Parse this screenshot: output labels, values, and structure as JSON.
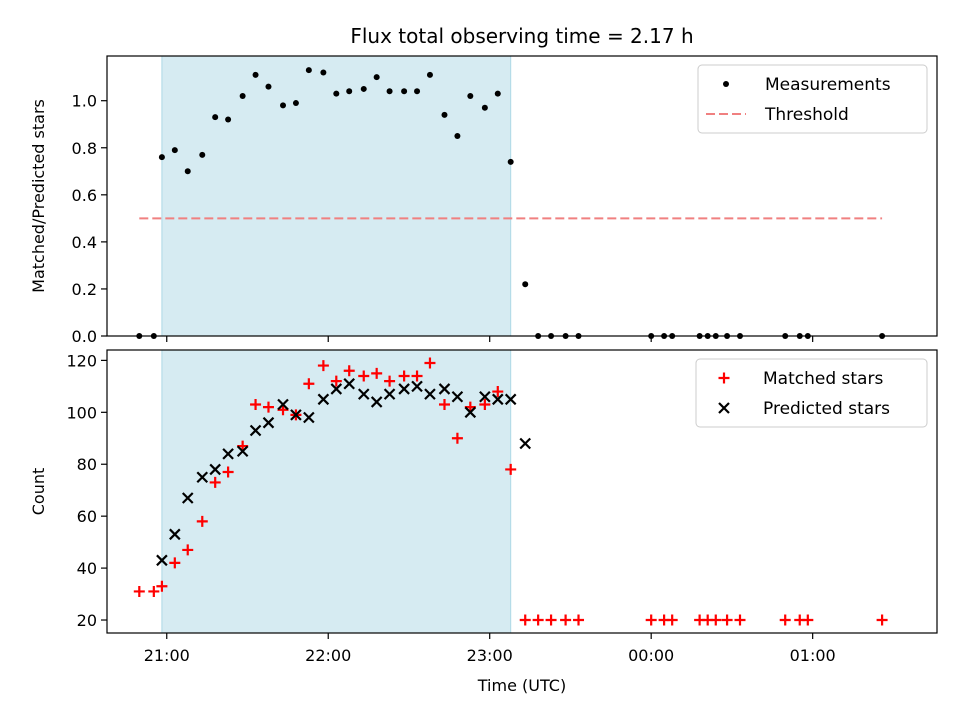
{
  "chart_data": {
    "type": "scatter",
    "title": "Flux total observing time = 2.17 h",
    "xlabel": "Time (UTC)",
    "xlim_hours": [
      20.63,
      25.77
    ],
    "xticks": [
      {
        "value": 21,
        "label": "21:00"
      },
      {
        "value": 22,
        "label": "22:00"
      },
      {
        "value": 23,
        "label": "23:00"
      },
      {
        "value": 24,
        "label": "00:00"
      },
      {
        "value": 25,
        "label": "01:00"
      }
    ],
    "shaded_span_hours": [
      20.97,
      23.13
    ],
    "panels": [
      {
        "ylabel": "Matched/Predicted stars",
        "ylim": [
          0,
          1.19
        ],
        "yticks": [
          {
            "value": 0.0,
            "label": "0.0"
          },
          {
            "value": 0.2,
            "label": "0.2"
          },
          {
            "value": 0.4,
            "label": "0.4"
          },
          {
            "value": 0.6,
            "label": "0.6"
          },
          {
            "value": 0.8,
            "label": "0.8"
          },
          {
            "value": 1.0,
            "label": "1.0"
          }
        ],
        "legend_position": "top-right",
        "series": [
          {
            "name": "Measurements",
            "kind": "dot",
            "color": "#000000",
            "points": [
              [
                20.83,
                0
              ],
              [
                20.92,
                0
              ],
              [
                20.97,
                0.76
              ],
              [
                21.05,
                0.79
              ],
              [
                21.13,
                0.7
              ],
              [
                21.22,
                0.77
              ],
              [
                21.3,
                0.93
              ],
              [
                21.38,
                0.92
              ],
              [
                21.47,
                1.02
              ],
              [
                21.55,
                1.11
              ],
              [
                21.63,
                1.06
              ],
              [
                21.72,
                0.98
              ],
              [
                21.8,
                0.99
              ],
              [
                21.88,
                1.13
              ],
              [
                21.97,
                1.12
              ],
              [
                22.05,
                1.03
              ],
              [
                22.13,
                1.04
              ],
              [
                22.22,
                1.05
              ],
              [
                22.3,
                1.1
              ],
              [
                22.38,
                1.04
              ],
              [
                22.47,
                1.04
              ],
              [
                22.55,
                1.04
              ],
              [
                22.63,
                1.11
              ],
              [
                22.72,
                0.94
              ],
              [
                22.8,
                0.85
              ],
              [
                22.88,
                1.02
              ],
              [
                22.97,
                0.97
              ],
              [
                23.05,
                1.03
              ],
              [
                23.13,
                0.74
              ],
              [
                23.22,
                0.22
              ],
              [
                23.3,
                0
              ],
              [
                23.38,
                0
              ],
              [
                23.47,
                0
              ],
              [
                23.55,
                0
              ],
              [
                24.0,
                0
              ],
              [
                24.08,
                0
              ],
              [
                24.13,
                0
              ],
              [
                24.3,
                0
              ],
              [
                24.35,
                0
              ],
              [
                24.4,
                0
              ],
              [
                24.47,
                0
              ],
              [
                24.55,
                0
              ],
              [
                24.83,
                0
              ],
              [
                24.92,
                0
              ],
              [
                24.97,
                0
              ],
              [
                25.43,
                0
              ]
            ]
          },
          {
            "name": "Threshold",
            "kind": "dashed",
            "color": "#f08080",
            "from_hour": 20.83,
            "to_hour": 25.43,
            "value": 0.5
          }
        ]
      },
      {
        "ylabel": "Count",
        "ylim": [
          15,
          124
        ],
        "yticks": [
          {
            "value": 20,
            "label": "20"
          },
          {
            "value": 40,
            "label": "40"
          },
          {
            "value": 60,
            "label": "60"
          },
          {
            "value": 80,
            "label": "80"
          },
          {
            "value": 100,
            "label": "100"
          },
          {
            "value": 120,
            "label": "120"
          }
        ],
        "legend_position": "top-right",
        "series": [
          {
            "name": "Matched stars",
            "kind": "plus",
            "color": "#ff0000",
            "points": [
              [
                20.83,
                31
              ],
              [
                20.92,
                31
              ],
              [
                20.97,
                33
              ],
              [
                21.05,
                42
              ],
              [
                21.13,
                47
              ],
              [
                21.22,
                58
              ],
              [
                21.3,
                73
              ],
              [
                21.38,
                77
              ],
              [
                21.47,
                87
              ],
              [
                21.55,
                103
              ],
              [
                21.63,
                102
              ],
              [
                21.72,
                101
              ],
              [
                21.8,
                99
              ],
              [
                21.88,
                111
              ],
              [
                21.97,
                118
              ],
              [
                22.05,
                112
              ],
              [
                22.13,
                116
              ],
              [
                22.22,
                114
              ],
              [
                22.3,
                115
              ],
              [
                22.38,
                112
              ],
              [
                22.47,
                114
              ],
              [
                22.55,
                114
              ],
              [
                22.63,
                119
              ],
              [
                22.72,
                103
              ],
              [
                22.8,
                90
              ],
              [
                22.88,
                102
              ],
              [
                22.97,
                103
              ],
              [
                23.05,
                108
              ],
              [
                23.13,
                78
              ],
              [
                23.22,
                20
              ],
              [
                23.3,
                20
              ],
              [
                23.38,
                20
              ],
              [
                23.47,
                20
              ],
              [
                23.55,
                20
              ],
              [
                24.0,
                20
              ],
              [
                24.08,
                20
              ],
              [
                24.13,
                20
              ],
              [
                24.3,
                20
              ],
              [
                24.35,
                20
              ],
              [
                24.4,
                20
              ],
              [
                24.47,
                20
              ],
              [
                24.55,
                20
              ],
              [
                24.83,
                20
              ],
              [
                24.92,
                20
              ],
              [
                24.97,
                20
              ],
              [
                25.43,
                20
              ]
            ]
          },
          {
            "name": "Predicted stars",
            "kind": "x",
            "color": "#000000",
            "points": [
              [
                20.97,
                43
              ],
              [
                21.05,
                53
              ],
              [
                21.13,
                67
              ],
              [
                21.22,
                75
              ],
              [
                21.3,
                78
              ],
              [
                21.38,
                84
              ],
              [
                21.47,
                85
              ],
              [
                21.55,
                93
              ],
              [
                21.63,
                96
              ],
              [
                21.72,
                103
              ],
              [
                21.8,
                99
              ],
              [
                21.88,
                98
              ],
              [
                21.97,
                105
              ],
              [
                22.05,
                109
              ],
              [
                22.13,
                111
              ],
              [
                22.22,
                107
              ],
              [
                22.3,
                104
              ],
              [
                22.38,
                107
              ],
              [
                22.47,
                109
              ],
              [
                22.55,
                110
              ],
              [
                22.63,
                107
              ],
              [
                22.72,
                109
              ],
              [
                22.8,
                106
              ],
              [
                22.88,
                100
              ],
              [
                22.97,
                106
              ],
              [
                23.05,
                105
              ],
              [
                23.13,
                105
              ],
              [
                23.22,
                88
              ]
            ]
          }
        ]
      }
    ]
  }
}
